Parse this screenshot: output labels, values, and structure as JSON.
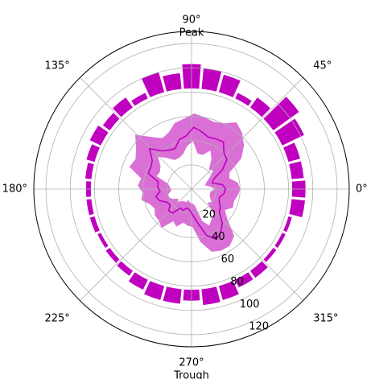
{
  "chart_data": {
    "type": "polar",
    "theta_ticks": [
      {
        "deg": 0,
        "label": "0$^\\circ$",
        "text": "0°"
      },
      {
        "deg": 45,
        "label": "45°",
        "text": "45°"
      },
      {
        "deg": 90,
        "label": "90°",
        "text": "90°",
        "sub": "Peak"
      },
      {
        "deg": 135,
        "label": "135°",
        "text": "135°"
      },
      {
        "deg": 180,
        "label": "180°",
        "text": "180°"
      },
      {
        "deg": 225,
        "label": "225°",
        "text": "225°"
      },
      {
        "deg": 270,
        "label": "270°",
        "text": "270°",
        "sub": "Trough"
      },
      {
        "deg": 315,
        "label": "315°",
        "text": "315°"
      }
    ],
    "r_ticks": [
      20,
      40,
      60,
      80,
      100,
      120
    ],
    "r_max": 130,
    "grid": true,
    "color": "#bf00bf",
    "band_color": "#da70d6",
    "bars": {
      "base": 83,
      "angles_deg": [
        0,
        10,
        20,
        30,
        40,
        50,
        60,
        70,
        80,
        90,
        100,
        110,
        120,
        130,
        140,
        150,
        160,
        170,
        180,
        190,
        200,
        210,
        220,
        230,
        240,
        250,
        260,
        270,
        280,
        290,
        300,
        310,
        320,
        330,
        340,
        350
      ],
      "heights": [
        11,
        10,
        10,
        20,
        26,
        10,
        5,
        15,
        17,
        20,
        13,
        17,
        5,
        10,
        7,
        10,
        7,
        5,
        4,
        4,
        4,
        3,
        4,
        5,
        9,
        12,
        12,
        9,
        13,
        12,
        7,
        7,
        3,
        3,
        3,
        11
      ]
    },
    "line": {
      "angles_deg": [
        0,
        8,
        16,
        24,
        32,
        40,
        48,
        56,
        64,
        72,
        80,
        88,
        96,
        104,
        112,
        120,
        128,
        136,
        144,
        152,
        160,
        168,
        176,
        184,
        192,
        200,
        208,
        216,
        224,
        232,
        240,
        248,
        256,
        264,
        272,
        280,
        288,
        296,
        304,
        312,
        320,
        328,
        336,
        344,
        352
      ],
      "values": [
        28,
        26,
        18,
        20,
        30,
        38,
        40,
        47,
        46,
        45,
        48,
        51,
        44,
        42,
        36,
        37,
        40,
        48,
        40,
        38,
        38,
        28,
        28,
        26,
        30,
        28,
        23,
        22,
        26,
        25,
        18,
        19,
        16,
        17,
        21,
        28,
        40,
        46,
        43,
        38,
        30,
        28,
        25,
        24,
        27
      ],
      "lower": [
        20,
        16,
        12,
        14,
        18,
        24,
        22,
        30,
        36,
        30,
        30,
        40,
        36,
        30,
        28,
        28,
        33,
        39,
        32,
        30,
        31,
        20,
        18,
        17,
        20,
        20,
        18,
        14,
        16,
        13,
        12,
        12,
        10,
        12,
        12,
        14,
        28,
        34,
        30,
        28,
        18,
        20,
        17,
        16,
        16
      ],
      "upper": [
        40,
        38,
        32,
        34,
        48,
        56,
        62,
        66,
        60,
        58,
        60,
        62,
        58,
        56,
        50,
        48,
        54,
        64,
        56,
        52,
        54,
        42,
        44,
        40,
        42,
        36,
        34,
        37,
        37,
        40,
        30,
        33,
        28,
        30,
        31,
        44,
        54,
        56,
        56,
        52,
        38,
        32,
        37,
        36,
        38
      ]
    }
  }
}
